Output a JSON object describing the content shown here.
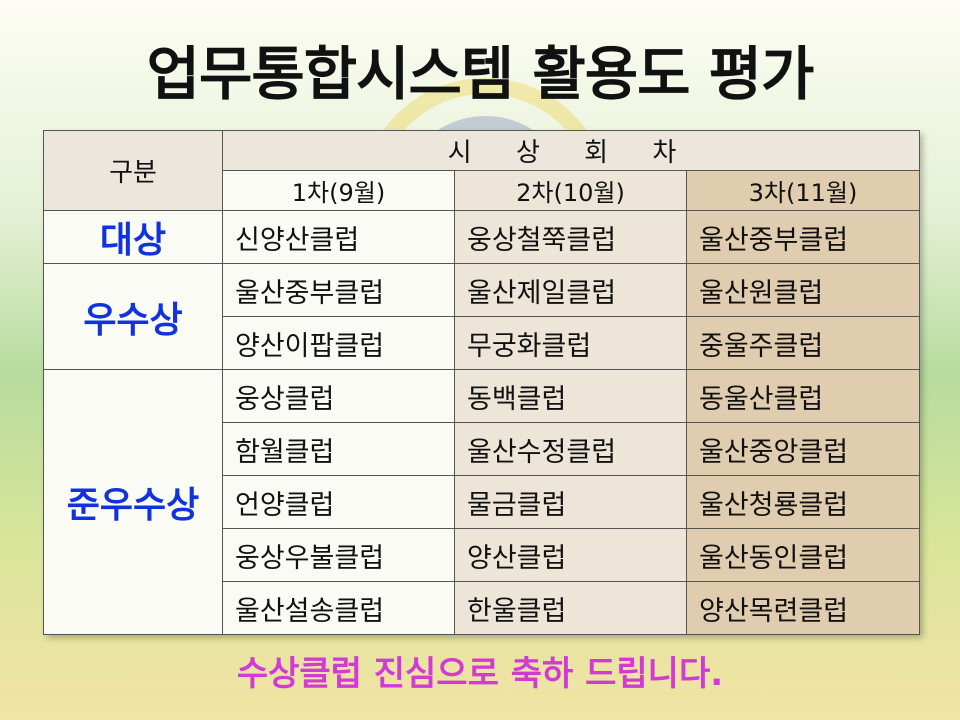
{
  "title": "업무통합시스템 활용도 평가",
  "table": {
    "category_header": "구분",
    "round_group_header": "시 상 회 차",
    "rounds": [
      "1차(9월)",
      "2차(10월)",
      "3차(11월)"
    ],
    "groups": [
      {
        "label": "대상",
        "rows": [
          [
            "신양산클럽",
            "웅상철쭉클럽",
            "울산중부클럽"
          ]
        ]
      },
      {
        "label": "우수상",
        "rows": [
          [
            "울산중부클럽",
            "울산제일클럽",
            "울산원클럽"
          ],
          [
            "양산이팝클럽",
            "무궁화클럽",
            "중울주클럽"
          ]
        ]
      },
      {
        "label": "준우수상",
        "rows": [
          [
            "웅상클럽",
            "동백클럽",
            "동울산클럽"
          ],
          [
            "함월클럽",
            "울산수정클럽",
            "울산중앙클럽"
          ],
          [
            "언양클럽",
            "물금클럽",
            "울산청룡클럽"
          ],
          [
            "웅상우불클럽",
            "양산클럽",
            "울산동인클럽"
          ],
          [
            "울산설송클럽",
            "한울클럽",
            "양산목련클럽"
          ]
        ]
      }
    ]
  },
  "footer": "수상클럽 진심으로 축하 드립니다."
}
